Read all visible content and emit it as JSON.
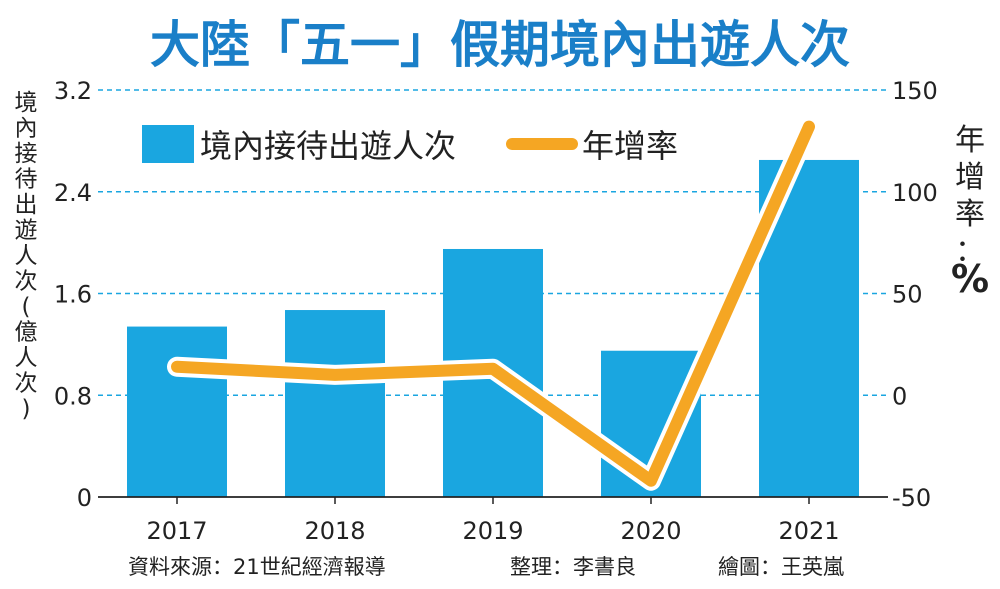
{
  "chart_data": {
    "type": "bar+line",
    "title": "大陸「五一」假期境內出遊人次",
    "categories": [
      "2017",
      "2018",
      "2019",
      "2020",
      "2021"
    ],
    "series": [
      {
        "name": "境內接待出遊人次",
        "type": "bar",
        "axis": "left",
        "color": "#1aa6e0",
        "values": [
          1.34,
          1.47,
          1.95,
          1.15,
          2.65
        ]
      },
      {
        "name": "年增率",
        "type": "line",
        "axis": "right",
        "color": "#f5a623",
        "values": [
          14,
          10,
          13,
          -42,
          132
        ]
      }
    ],
    "y_left": {
      "label": "境內接待出遊人次(億人次)",
      "ylim": [
        0,
        3.2
      ],
      "ticks": [
        "0",
        "0.8",
        "1.6",
        "2.4",
        "3.2"
      ]
    },
    "y_right": {
      "label": "年增率：%",
      "ylim": [
        -50,
        150
      ],
      "ticks": [
        "-50",
        "0",
        "50",
        "100",
        "150"
      ]
    },
    "grid": "horizontal-dashed",
    "legend_position": "top-left",
    "source": "資料來源：21世紀經濟報導",
    "editor": "整理：李書良",
    "artist": "繪圖：王英嵐"
  }
}
